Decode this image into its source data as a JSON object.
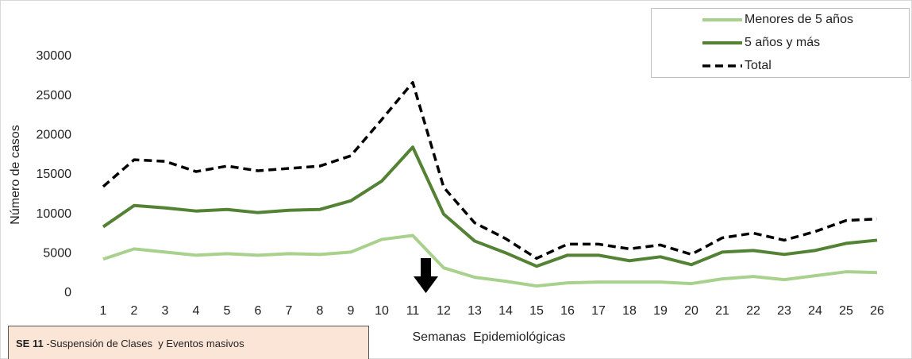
{
  "chart_data": {
    "type": "line",
    "x_label": "Semanas  Epidemiológicas",
    "y_label": "Número de casos",
    "categories": [
      "1",
      "2",
      "3",
      "4",
      "5",
      "6",
      "7",
      "8",
      "9",
      "10",
      "11",
      "12",
      "13",
      "14",
      "15",
      "16",
      "17",
      "18",
      "19",
      "20",
      "21",
      "22",
      "23",
      "24",
      "25",
      "26"
    ],
    "series": [
      {
        "name": "Menores de 5 años",
        "color": "#a9d18e",
        "dashed": false,
        "values": [
          4300,
          5600,
          5200,
          4800,
          5000,
          4800,
          5000,
          4900,
          5200,
          6800,
          7300,
          3200,
          2000,
          1500,
          900,
          1300,
          1400,
          1400,
          1400,
          1200,
          1800,
          2100,
          1700,
          2200,
          2700,
          2600
        ]
      },
      {
        "name": "5 años y más",
        "color": "#548235",
        "dashed": false,
        "values": [
          8400,
          11100,
          10800,
          10400,
          10600,
          10200,
          10500,
          10600,
          11700,
          14200,
          18500,
          10000,
          6600,
          5100,
          3400,
          4800,
          4800,
          4100,
          4600,
          3600,
          5200,
          5400,
          4900,
          5400,
          6300,
          6700
        ]
      },
      {
        "name": "Total",
        "color": "#000000",
        "dashed": true,
        "values": [
          13500,
          16900,
          16700,
          15400,
          16100,
          15500,
          15800,
          16100,
          17400,
          22000,
          26700,
          13400,
          8900,
          6900,
          4400,
          6200,
          6200,
          5600,
          6100,
          4900,
          7000,
          7600,
          6700,
          7800,
          9200,
          9400
        ]
      }
    ],
    "ylim": [
      0,
      30000
    ],
    "yticks": [
      0,
      5000,
      10000,
      15000,
      20000,
      25000,
      30000
    ],
    "legend": "top-right",
    "annotation": {
      "bold": "SE 11",
      "text": "-Suspensión de Clases  y Eventos masivos"
    }
  }
}
